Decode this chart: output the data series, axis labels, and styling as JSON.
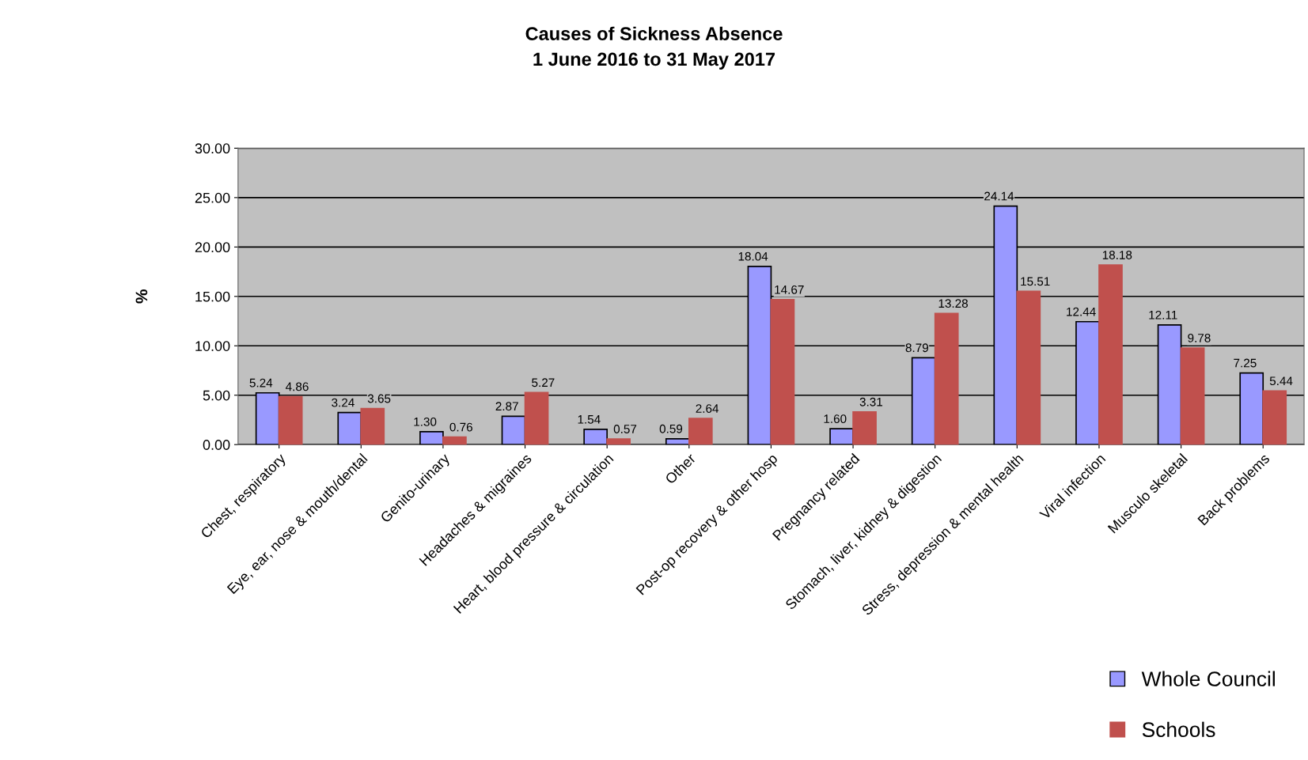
{
  "chart_data": {
    "type": "bar",
    "title": "Causes of Sickness Absence\n1 June 2016 to 31 May 2017",
    "ylabel": "%",
    "categories": [
      "Chest, respiratory",
      "Eye, ear, nose & mouth/dental",
      "Genito-urinary",
      "Headaches & migraines",
      "Heart, blood pressure & circulation",
      "Other",
      "Post-op recovery & other hosp",
      "Pregnancy related",
      "Stomach, liver, kidney & digestion",
      "Stress, depression & mental health",
      "Viral infection",
      "Musculo skeletal",
      "Back problems"
    ],
    "series": [
      {
        "name": "Whole Council",
        "color": "#9999ff",
        "values": [
          5.24,
          3.24,
          1.3,
          2.87,
          1.54,
          0.59,
          18.04,
          1.6,
          8.79,
          24.14,
          12.44,
          12.11,
          7.25
        ],
        "value_labels": [
          "5.24",
          "3.24",
          "1.30",
          "2.87",
          "1.54",
          "0.59",
          "18.04",
          "1.60",
          "8.79",
          "24.14",
          "12.44",
          "12.11",
          "7.25"
        ]
      },
      {
        "name": "Schools",
        "color": "#c0504d",
        "values": [
          4.86,
          3.65,
          0.76,
          5.27,
          0.57,
          2.64,
          14.67,
          3.31,
          13.28,
          15.51,
          18.18,
          9.78,
          5.44
        ],
        "value_labels": [
          "4.86",
          "3.65",
          "0.76",
          "5.27",
          "0.57",
          "2.64",
          "14.67",
          "3.31",
          "13.28",
          "15.51",
          "18.18",
          "9.78",
          "5.44"
        ]
      }
    ],
    "ylim": [
      0,
      30
    ],
    "yticks": [
      {
        "value": 0,
        "label": "0.00"
      },
      {
        "value": 5,
        "label": "5.00"
      },
      {
        "value": 10,
        "label": "10.00"
      },
      {
        "value": 15,
        "label": "15.00"
      },
      {
        "value": 20,
        "label": "20.00"
      },
      {
        "value": 25,
        "label": "25.00"
      },
      {
        "value": 30,
        "label": "30.00"
      }
    ],
    "grid": "y",
    "legend": "bottom right"
  }
}
